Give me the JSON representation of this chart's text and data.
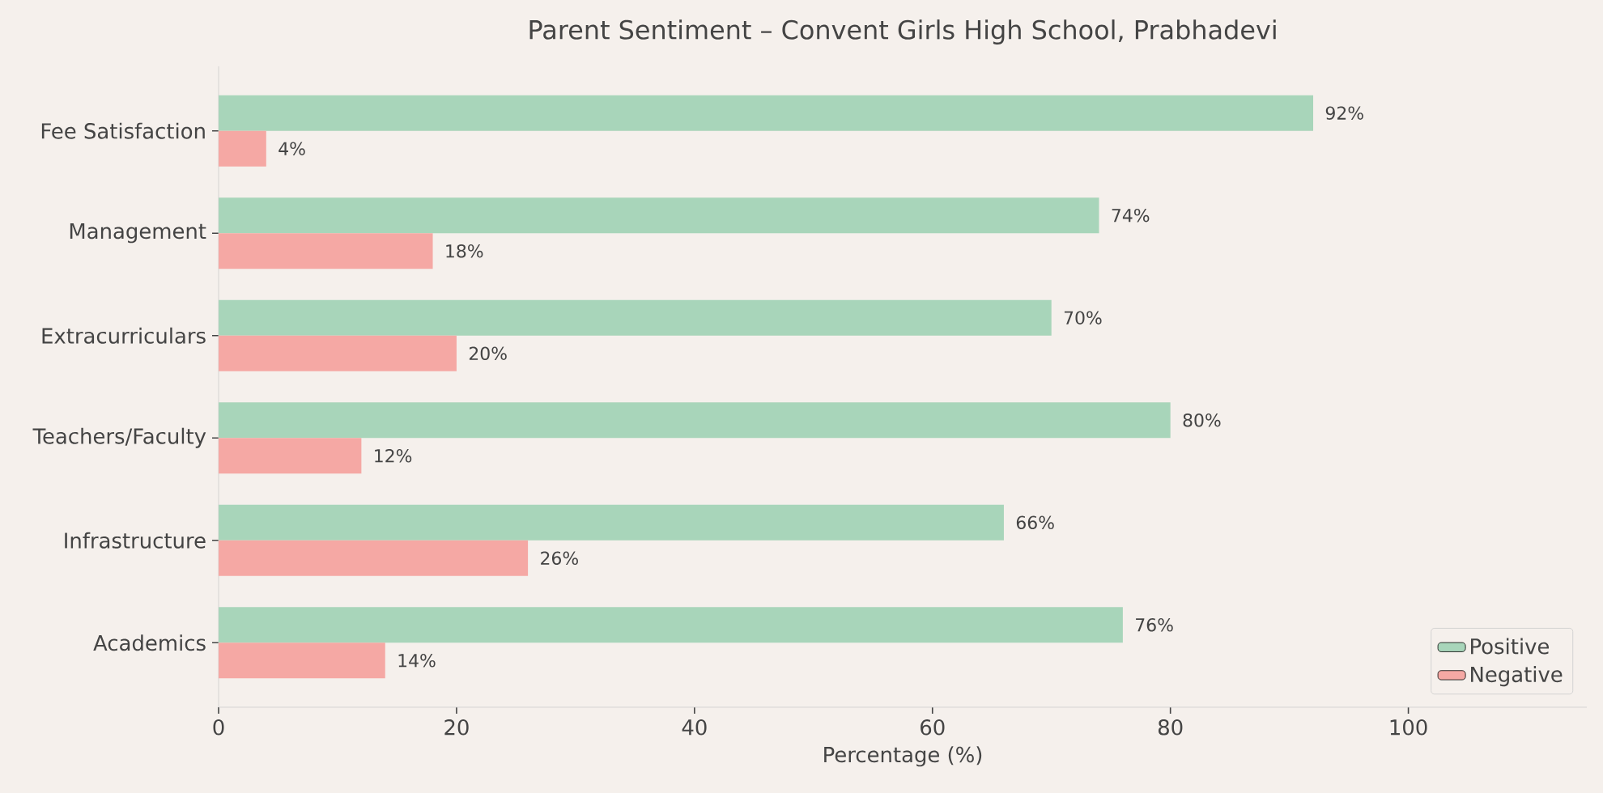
{
  "chart_data": {
    "type": "bar",
    "orientation": "horizontal",
    "title": "Parent Sentiment – Convent Girls High School, Prabhadevi",
    "xlabel": "Percentage (%)",
    "categories": [
      "Fee Satisfaction",
      "Management",
      "Extracurriculars",
      "Teachers/Faculty",
      "Infrastructure",
      "Academics"
    ],
    "series": [
      {
        "name": "Positive",
        "color": "#a8d5ba",
        "values": [
          92,
          74,
          70,
          80,
          66,
          76
        ],
        "value_labels": [
          "92%",
          "74%",
          "70%",
          "80%",
          "66%",
          "76%"
        ]
      },
      {
        "name": "Negative",
        "color": "#f5a8a4",
        "values": [
          4,
          18,
          20,
          12,
          26,
          14
        ],
        "value_labels": [
          "4%",
          "18%",
          "20%",
          "12%",
          "26%",
          "14%"
        ]
      }
    ],
    "xlim": [
      0,
      115
    ],
    "xticks": [
      0,
      20,
      40,
      60,
      80,
      100
    ],
    "grid": false,
    "legend": "bottom right"
  }
}
